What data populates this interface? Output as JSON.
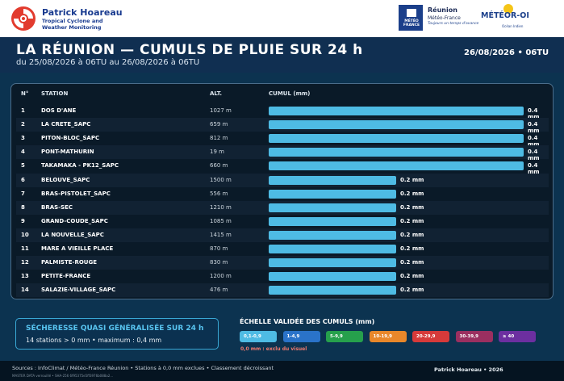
{
  "brand": {
    "name": "Patrick Hoareau",
    "sub1": "Tropical Cyclone and",
    "sub2": "Weather Monitoring"
  },
  "meteofrance": {
    "box_label1": "MÉTÉO",
    "box_label2": "FRANCE",
    "line1": "Réunion",
    "line2": "Météo-France",
    "line3": "Toujours un temps d'avance"
  },
  "meteor": {
    "title": "MÉTÉOR-OI",
    "sub": "Océan Indien"
  },
  "header": {
    "title": "LA RÉUNION — CUMULS DE PLUIE SUR 24 h",
    "subtitle": "du 25/08/2026 à 06TU au 26/08/2026 à 06TU",
    "date": "26/08/2026 • 06TU"
  },
  "table": {
    "columns": {
      "num": "N°",
      "station": "STATION",
      "alt": "ALT.",
      "cumul": "CUMUL (mm)"
    },
    "rows": [
      {
        "n": "1",
        "station": "DOS D'ANE",
        "alt": "1027 m",
        "value": 0.4,
        "label": "0.4 mm"
      },
      {
        "n": "2",
        "station": "LA CRETE_SAPC",
        "alt": "659 m",
        "value": 0.4,
        "label": "0.4 mm"
      },
      {
        "n": "3",
        "station": "PITON-BLOC_SAPC",
        "alt": "812 m",
        "value": 0.4,
        "label": "0.4 mm"
      },
      {
        "n": "4",
        "station": "PONT-MATHURIN",
        "alt": "19 m",
        "value": 0.4,
        "label": "0.4 mm"
      },
      {
        "n": "5",
        "station": "TAKAMAKA - PK12_SAPC",
        "alt": "660 m",
        "value": 0.4,
        "label": "0.4 mm"
      },
      {
        "n": "6",
        "station": "BELOUVE_SAPC",
        "alt": "1500 m",
        "value": 0.2,
        "label": "0.2 mm"
      },
      {
        "n": "7",
        "station": "BRAS-PISTOLET_SAPC",
        "alt": "556 m",
        "value": 0.2,
        "label": "0.2 mm"
      },
      {
        "n": "8",
        "station": "BRAS-SEC",
        "alt": "1210 m",
        "value": 0.2,
        "label": "0.2 mm"
      },
      {
        "n": "9",
        "station": "GRAND-COUDE_SAPC",
        "alt": "1085 m",
        "value": 0.2,
        "label": "0.2 mm"
      },
      {
        "n": "10",
        "station": "LA NOUVELLE_SAPC",
        "alt": "1415 m",
        "value": 0.2,
        "label": "0.2 mm"
      },
      {
        "n": "11",
        "station": "MARE A VIEILLE PLACE",
        "alt": "870 m",
        "value": 0.2,
        "label": "0.2 mm"
      },
      {
        "n": "12",
        "station": "PALMISTE-ROUGE",
        "alt": "830 m",
        "value": 0.2,
        "label": "0.2 mm"
      },
      {
        "n": "13",
        "station": "PETITE-FRANCE",
        "alt": "1200 m",
        "value": 0.2,
        "label": "0.2 mm"
      },
      {
        "n": "14",
        "station": "SALAZIE-VILLAGE_SAPC",
        "alt": "476 m",
        "value": 0.2,
        "label": "0.2 mm"
      }
    ],
    "max_value": 0.4,
    "bar_color": "#4ebbe4"
  },
  "drought": {
    "title": "SÉCHERESSE QUASI GÉNÉRALISÉE SUR 24 h",
    "body": "14 stations > 0 mm  •  maximum : 0,4 mm"
  },
  "scale": {
    "title": "ÉCHELLE VALIDÉE DES CUMULS (mm)",
    "chips": [
      {
        "label": "0,1-0,9",
        "color": "#4ebbe4"
      },
      {
        "label": "1-4,9",
        "color": "#2a73c9"
      },
      {
        "label": "5-9,9",
        "color": "#26a04c"
      },
      {
        "label": "10-19,9",
        "color": "#e8872a"
      },
      {
        "label": "20-29,9",
        "color": "#d63a3a"
      },
      {
        "label": "30-39,9",
        "color": "#9b2f60"
      },
      {
        "label": "≥ 40",
        "color": "#6c2fa0"
      }
    ],
    "note": "0,0 mm : exclu du visuel"
  },
  "footer": {
    "sources": "Sources : InfoClimat / Météo-France Réunion • Stations à 0,0 mm exclues • Classement décroissant",
    "master": "MASTER DATA verrouillé • SHA-256 6f95375e5ff3976b088a2…",
    "author": "Patrick Hoareau • 2026"
  }
}
